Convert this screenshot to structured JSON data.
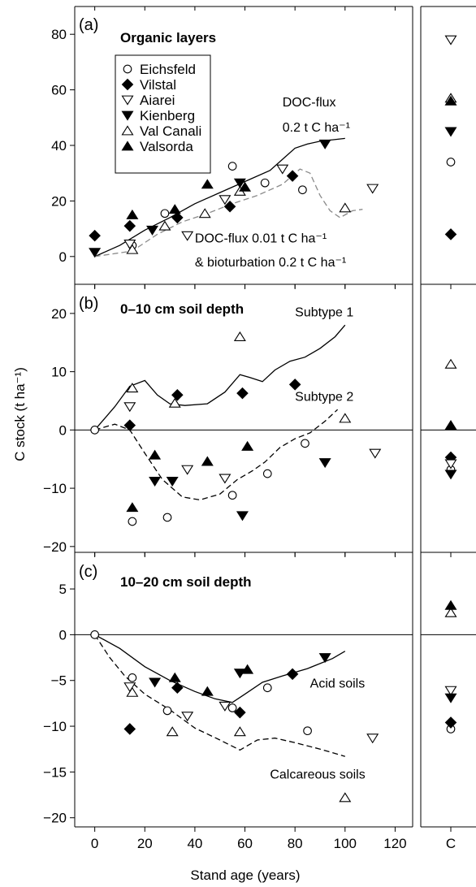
{
  "y_axis_title": "C stock (t ha⁻¹)",
  "x_axis_title": "Stand age (years)",
  "control_tick_label": "C",
  "legend": [
    {
      "label": "Eichsfeld",
      "marker": "circle-open"
    },
    {
      "label": "Vilstal",
      "marker": "diamond-filled"
    },
    {
      "label": "Aiarei",
      "marker": "triangle-down-open"
    },
    {
      "label": "Kienberg",
      "marker": "triangle-down-filled"
    },
    {
      "label": "Val Canali",
      "marker": "triangle-up-open"
    },
    {
      "label": "Valsorda",
      "marker": "triangle-up-filled"
    }
  ],
  "chart_data": [
    {
      "type": "scatter",
      "panel": "(a)",
      "title": "Organic layers",
      "x_ticks": [
        0,
        20,
        40,
        60,
        80,
        100,
        120
      ],
      "xlim": [
        -8,
        127
      ],
      "ylim": [
        -10,
        90
      ],
      "y_ticks": [
        0,
        20,
        40,
        60,
        80
      ],
      "zero_line": false,
      "series": [
        {
          "name": "Eichsfeld",
          "marker": "circle-open",
          "points": [
            [
              15,
              4
            ],
            [
              28,
              15.5
            ],
            [
              55,
              32.5
            ],
            [
              68,
              26.5
            ],
            [
              83,
              24
            ]
          ],
          "control": [
            34
          ]
        },
        {
          "name": "Vilstal",
          "marker": "diamond-filled",
          "points": [
            [
              0,
              7.5
            ],
            [
              14,
              11
            ],
            [
              33,
              14
            ],
            [
              54,
              18
            ],
            [
              79,
              29
            ]
          ],
          "control": [
            8
          ]
        },
        {
          "name": "Aiarei",
          "marker": "triangle-down-open",
          "points": [
            [
              14,
              4.5
            ],
            [
              37,
              7.5
            ],
            [
              52,
              20.5
            ],
            [
              75,
              31.5
            ],
            [
              111,
              24.5
            ]
          ],
          "control": [
            78
          ]
        },
        {
          "name": "Kienberg",
          "marker": "triangle-down-filled",
          "points": [
            [
              0,
              1.5
            ],
            [
              23,
              9.5
            ],
            [
              58,
              26.5
            ],
            [
              92,
              40.5
            ]
          ],
          "control": [
            45
          ]
        },
        {
          "name": "Val Canali",
          "marker": "triangle-up-open",
          "points": [
            [
              15,
              2.5
            ],
            [
              28,
              11
            ],
            [
              44,
              15.5
            ],
            [
              58,
              23.5
            ],
            [
              100,
              17.5
            ]
          ],
          "control": [
            57
          ]
        },
        {
          "name": "Valsorda",
          "marker": "triangle-up-filled",
          "points": [
            [
              15,
              15
            ],
            [
              32,
              17
            ],
            [
              45,
              26
            ],
            [
              60,
              25
            ]
          ],
          "control": [
            56
          ]
        }
      ],
      "curves": [
        {
          "label": "DOC-flux 0.2 t C ha⁻¹",
          "style": "solid",
          "points": [
            [
              0,
              0
            ],
            [
              10,
              4
            ],
            [
              20,
              9.5
            ],
            [
              30,
              14
            ],
            [
              40,
              19
            ],
            [
              50,
              23
            ],
            [
              60,
              27
            ],
            [
              70,
              31
            ],
            [
              75,
              35
            ],
            [
              80,
              39
            ],
            [
              85,
              40.5
            ],
            [
              90,
              41.5
            ],
            [
              100,
              42.5
            ]
          ]
        },
        {
          "label": "DOC-flux 0.01 t C ha⁻¹ & bioturbation 0.2 t C ha⁻¹",
          "style": "dashed",
          "points": [
            [
              0,
              0
            ],
            [
              15,
              2
            ],
            [
              25,
              8
            ],
            [
              35,
              12.5
            ],
            [
              45,
              15.5
            ],
            [
              55,
              19
            ],
            [
              65,
              22
            ],
            [
              75,
              26
            ],
            [
              82,
              31.5
            ],
            [
              86,
              30
            ],
            [
              90,
              22
            ],
            [
              94,
              16.5
            ],
            [
              98,
              14
            ],
            [
              103,
              16.5
            ],
            [
              107,
              17
            ]
          ]
        }
      ],
      "annotations": [
        {
          "text": "DOC-flux",
          "x": 75,
          "y": 54
        },
        {
          "text": "0.2 t C ha⁻¹",
          "x": 75,
          "y": 45
        },
        {
          "text": "DOC-flux 0.01 t C ha⁻¹",
          "x": 40,
          "y": 5
        },
        {
          "text": "& bioturbation 0.2 t C ha⁻¹",
          "x": 40,
          "y": -3.5
        }
      ]
    },
    {
      "type": "scatter",
      "panel": "(b)",
      "title": "0–10 cm soil depth",
      "x_ticks": [
        0,
        20,
        40,
        60,
        80,
        100,
        120
      ],
      "xlim": [
        -8,
        127
      ],
      "ylim": [
        -21,
        25
      ],
      "y_ticks": [
        -20,
        -10,
        0,
        10,
        20
      ],
      "zero_line": true,
      "series": [
        {
          "name": "Eichsfeld",
          "marker": "circle-open",
          "points": [
            [
              0,
              0
            ],
            [
              15,
              -15.7
            ],
            [
              29,
              -15
            ],
            [
              55,
              -11.2
            ],
            [
              69,
              -7.5
            ],
            [
              84,
              -2.3
            ]
          ],
          "control": [
            -6.8
          ]
        },
        {
          "name": "Vilstal",
          "marker": "diamond-filled",
          "points": [
            [
              14,
              0.8
            ],
            [
              33,
              6
            ],
            [
              59,
              6.3
            ],
            [
              80,
              7.8
            ]
          ],
          "control": [
            -4.7
          ]
        },
        {
          "name": "Aiarei",
          "marker": "triangle-down-open",
          "points": [
            [
              14,
              4
            ],
            [
              37,
              -6.8
            ],
            [
              52,
              -8.3
            ],
            [
              112,
              -4
            ]
          ],
          "control": [
            -5.8
          ]
        },
        {
          "name": "Kienberg",
          "marker": "triangle-down-filled",
          "points": [
            [
              24,
              -8.8
            ],
            [
              31,
              -8.8
            ],
            [
              59,
              -14.7
            ],
            [
              92,
              -5.6
            ]
          ],
          "control": [
            -7.6
          ]
        },
        {
          "name": "Val Canali",
          "marker": "triangle-up-open",
          "points": [
            [
              15,
              7.2
            ],
            [
              32,
              4.6
            ],
            [
              58,
              16
            ],
            [
              100,
              2
            ]
          ],
          "control": [
            11.3
          ]
        },
        {
          "name": "Valsorda",
          "marker": "triangle-up-filled",
          "points": [
            [
              15,
              -13.3
            ],
            [
              24,
              -4.3
            ],
            [
              45,
              -5.4
            ],
            [
              61,
              -2.8
            ]
          ],
          "control": [
            0.8
          ]
        }
      ],
      "curves": [
        {
          "label": "Subtype 1",
          "style": "solid",
          "points": [
            [
              0,
              0
            ],
            [
              8,
              4
            ],
            [
              14,
              7.5
            ],
            [
              20,
              8.5
            ],
            [
              25,
              6
            ],
            [
              30,
              4.5
            ],
            [
              36,
              4.2
            ],
            [
              45,
              4.5
            ],
            [
              52,
              6.5
            ],
            [
              58,
              9.5
            ],
            [
              62,
              9
            ],
            [
              67,
              8.3
            ],
            [
              72,
              10.3
            ],
            [
              78,
              11.8
            ],
            [
              84,
              12.5
            ],
            [
              90,
              14
            ],
            [
              96,
              16
            ],
            [
              100,
              18
            ]
          ]
        },
        {
          "label": "Subtype 2",
          "style": "dashed",
          "points": [
            [
              0,
              0
            ],
            [
              8,
              1
            ],
            [
              14,
              0
            ],
            [
              20,
              -4
            ],
            [
              27,
              -8.5
            ],
            [
              35,
              -11.5
            ],
            [
              42,
              -12
            ],
            [
              50,
              -11
            ],
            [
              57,
              -8.5
            ],
            [
              63,
              -7
            ],
            [
              68,
              -5.5
            ],
            [
              74,
              -3
            ],
            [
              80,
              -1.5
            ],
            [
              86,
              -0.5
            ],
            [
              92,
              1.5
            ],
            [
              97,
              3.5
            ]
          ]
        }
      ],
      "annotations": [
        {
          "text": "Subtype 1",
          "x": 80,
          "y": 19.5
        },
        {
          "text": "Subtype 2",
          "x": 80,
          "y": 5
        }
      ]
    },
    {
      "type": "scatter",
      "panel": "(c)",
      "title": "10–20 cm soil depth",
      "x_ticks": [
        0,
        20,
        40,
        60,
        80,
        100,
        120
      ],
      "xlim": [
        -8,
        127
      ],
      "ylim": [
        -21,
        9
      ],
      "y_ticks": [
        -20,
        -15,
        -10,
        -5,
        0,
        5
      ],
      "zero_line": true,
      "series": [
        {
          "name": "Eichsfeld",
          "marker": "circle-open",
          "points": [
            [
              0,
              0
            ],
            [
              15,
              -4.7
            ],
            [
              29,
              -8.3
            ],
            [
              55,
              -8
            ],
            [
              69,
              -5.8
            ],
            [
              85,
              -10.5
            ]
          ],
          "control": [
            -10.3
          ]
        },
        {
          "name": "Vilstal",
          "marker": "diamond-filled",
          "points": [
            [
              14,
              -10.3
            ],
            [
              33,
              -5.8
            ],
            [
              58,
              -8.5
            ],
            [
              79,
              -4.3
            ]
          ],
          "control": [
            -9.6
          ]
        },
        {
          "name": "Aiarei",
          "marker": "triangle-down-open",
          "points": [
            [
              14,
              -5.7
            ],
            [
              37,
              -8.9
            ],
            [
              52,
              -7.8
            ],
            [
              111,
              -11.3
            ]
          ],
          "control": [
            -6.1
          ]
        },
        {
          "name": "Kienberg",
          "marker": "triangle-down-filled",
          "points": [
            [
              24,
              -5.2
            ],
            [
              58,
              -4.2
            ],
            [
              92,
              -2.5
            ]
          ],
          "control": [
            -6.9
          ]
        },
        {
          "name": "Val Canali",
          "marker": "triangle-up-open",
          "points": [
            [
              15,
              -6.3
            ],
            [
              31,
              -10.6
            ],
            [
              58,
              -10.6
            ],
            [
              100,
              -17.8
            ]
          ],
          "control": [
            2.4
          ]
        },
        {
          "name": "Valsorda",
          "marker": "triangle-up-filled",
          "points": [
            [
              32,
              -4.7
            ],
            [
              45,
              -6.2
            ],
            [
              61,
              -3.8
            ]
          ],
          "control": [
            3.2
          ]
        }
      ],
      "curves": [
        {
          "label": "Acid soils",
          "style": "solid",
          "points": [
            [
              0,
              0
            ],
            [
              10,
              -1.5
            ],
            [
              20,
              -3.5
            ],
            [
              30,
              -5
            ],
            [
              40,
              -6.2
            ],
            [
              48,
              -7
            ],
            [
              55,
              -7.4
            ],
            [
              60,
              -6.5
            ],
            [
              67,
              -5.2
            ],
            [
              75,
              -4.5
            ],
            [
              85,
              -3.7
            ],
            [
              95,
              -2.6
            ],
            [
              100,
              -1.8
            ]
          ]
        },
        {
          "label": "Calcareous soils",
          "style": "dashed",
          "points": [
            [
              0,
              0
            ],
            [
              6,
              -2.5
            ],
            [
              12,
              -4.5
            ],
            [
              20,
              -6.5
            ],
            [
              30,
              -8.2
            ],
            [
              40,
              -10.2
            ],
            [
              50,
              -11.5
            ],
            [
              58,
              -12.6
            ],
            [
              65,
              -11.5
            ],
            [
              72,
              -11.3
            ],
            [
              80,
              -11.8
            ],
            [
              90,
              -12.5
            ],
            [
              100,
              -13.3
            ]
          ]
        }
      ],
      "annotations": [
        {
          "text": "Acid soils",
          "x": 86,
          "y": -5.8
        },
        {
          "text": "Calcareous soils",
          "x": 70,
          "y": -15.7
        }
      ]
    }
  ]
}
